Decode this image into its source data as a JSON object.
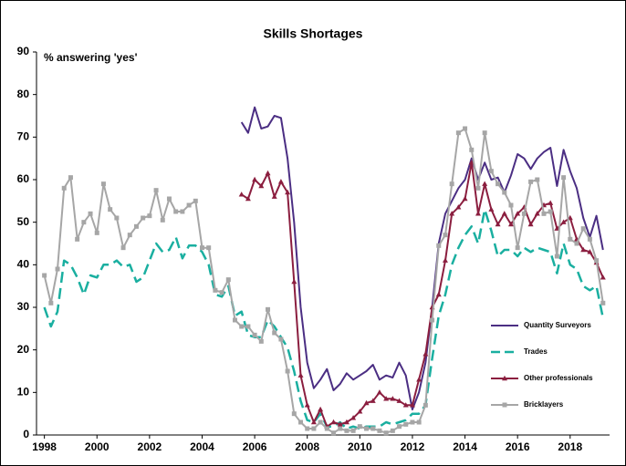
{
  "chart_data": {
    "type": "line",
    "title": "Skills Shortages",
    "ylabel": "% answering 'yes'",
    "x": [
      1998,
      1998.25,
      1998.5,
      1998.75,
      1999,
      1999.25,
      1999.5,
      1999.75,
      2000,
      2000.25,
      2000.5,
      2000.75,
      2001,
      2001.25,
      2001.5,
      2001.75,
      2002,
      2002.25,
      2002.5,
      2002.75,
      2003,
      2003.25,
      2003.5,
      2003.75,
      2004,
      2004.25,
      2004.5,
      2004.75,
      2005,
      2005.25,
      2005.5,
      2005.75,
      2006,
      2006.25,
      2006.5,
      2006.75,
      2007,
      2007.25,
      2007.5,
      2007.75,
      2008,
      2008.25,
      2008.5,
      2008.75,
      2009,
      2009.25,
      2009.5,
      2009.75,
      2010,
      2010.25,
      2010.5,
      2010.75,
      2011,
      2011.25,
      2011.5,
      2011.75,
      2012,
      2012.25,
      2012.5,
      2012.75,
      2013,
      2013.25,
      2013.5,
      2013.75,
      2014,
      2014.25,
      2014.5,
      2014.75,
      2015,
      2015.25,
      2015.5,
      2015.75,
      2016,
      2016.25,
      2016.5,
      2016.75,
      2017,
      2017.25,
      2017.5,
      2017.75,
      2018,
      2018.25,
      2018.5,
      2018.75,
      2019,
      2019.25
    ],
    "series": [
      {
        "name": "Quantity Surveyors",
        "color": "#4b2e83",
        "style": "solid",
        "marker": null,
        "values": [
          null,
          null,
          null,
          null,
          null,
          null,
          null,
          null,
          null,
          null,
          null,
          null,
          null,
          null,
          null,
          null,
          null,
          null,
          null,
          null,
          null,
          null,
          null,
          null,
          null,
          null,
          null,
          null,
          null,
          null,
          73.5,
          71,
          77,
          72,
          72.5,
          75,
          74.5,
          65,
          50,
          30,
          17,
          11,
          13,
          15.5,
          10.5,
          12,
          14.5,
          13,
          14,
          15,
          16.5,
          13,
          14,
          13.5,
          17,
          14,
          6,
          10,
          17,
          30,
          45,
          52,
          55,
          58,
          60,
          65,
          60,
          64,
          60,
          60.5,
          57,
          61,
          66,
          65,
          62.5,
          65,
          66.5,
          67.5,
          58.5,
          67,
          62,
          58,
          51,
          46.5,
          51.5,
          43.5
        ]
      },
      {
        "name": "Trades",
        "color": "#1aafa0",
        "style": "dashed",
        "marker": null,
        "values": [
          30,
          25.5,
          29,
          41,
          40,
          37,
          33,
          37.5,
          37,
          40,
          40,
          41,
          39.5,
          40,
          36,
          37,
          41,
          45,
          43,
          43.5,
          46.5,
          41.5,
          44.5,
          44.5,
          43,
          40,
          33,
          32.5,
          35,
          28,
          29,
          23.5,
          23,
          23,
          27,
          25.5,
          23,
          20.5,
          15,
          8,
          3.5,
          3,
          5,
          2,
          2,
          3,
          1.5,
          2,
          1.5,
          2,
          2,
          2,
          3,
          2.5,
          3,
          3.5,
          5,
          5,
          7,
          18,
          28,
          33,
          40,
          44,
          47,
          49,
          45,
          53,
          48,
          42,
          43.5,
          43.5,
          42,
          44,
          43,
          44,
          43.5,
          43,
          38,
          45,
          40,
          39,
          35,
          34,
          35,
          27.5
        ]
      },
      {
        "name": "Other professionals",
        "color": "#8b1e3f",
        "style": "solid",
        "marker": "triangle",
        "values": [
          null,
          null,
          null,
          null,
          null,
          null,
          null,
          null,
          null,
          null,
          null,
          null,
          null,
          null,
          null,
          null,
          null,
          null,
          null,
          null,
          null,
          null,
          null,
          null,
          null,
          null,
          null,
          null,
          null,
          null,
          56.5,
          55.5,
          60,
          58.5,
          61.5,
          56,
          59.5,
          57,
          36,
          14,
          7,
          3,
          6,
          2,
          3,
          2.5,
          3,
          4,
          5.5,
          7.5,
          8,
          10,
          8.5,
          8.5,
          8,
          7,
          7,
          13,
          19,
          30,
          33,
          41,
          52,
          53.5,
          55.5,
          64,
          52,
          59,
          53,
          49.5,
          52,
          49.5,
          52,
          53.5,
          49.5,
          52,
          54,
          54.5,
          48.5,
          50,
          51,
          46,
          43.5,
          43,
          40.5,
          37
        ]
      },
      {
        "name": "Bricklayers",
        "color": "#a6a6a6",
        "style": "solid",
        "marker": "square",
        "values": [
          37.5,
          31,
          39,
          58,
          60.5,
          46,
          50,
          52,
          47.5,
          59,
          53,
          51,
          44,
          47,
          49,
          51,
          51.5,
          57.5,
          50.5,
          55.5,
          52.5,
          52.5,
          54,
          55,
          44,
          44,
          34,
          33.5,
          36.5,
          27,
          25.5,
          25.5,
          23.5,
          22,
          29.5,
          24,
          22.5,
          15,
          5,
          3,
          1.5,
          1.5,
          3,
          1.5,
          0.5,
          1.5,
          1,
          1,
          2,
          1.5,
          1.5,
          1,
          0.5,
          1,
          2,
          2.5,
          3,
          3,
          7,
          27,
          44.5,
          47,
          59,
          71,
          72,
          67,
          58,
          71,
          62,
          59,
          57,
          54,
          44,
          52,
          59.5,
          60,
          52,
          52.5,
          42,
          60.5,
          46,
          45,
          48.5,
          46,
          41,
          31
        ]
      }
    ],
    "xlim": [
      1997.7,
      2019.5
    ],
    "xticks": [
      1998,
      2000,
      2002,
      2004,
      2006,
      2008,
      2010,
      2012,
      2014,
      2016,
      2018
    ],
    "ylim": [
      0,
      90
    ],
    "yticks": [
      0,
      10,
      20,
      30,
      40,
      50,
      60,
      70,
      80,
      90
    ],
    "grid": false,
    "legend": "right"
  }
}
